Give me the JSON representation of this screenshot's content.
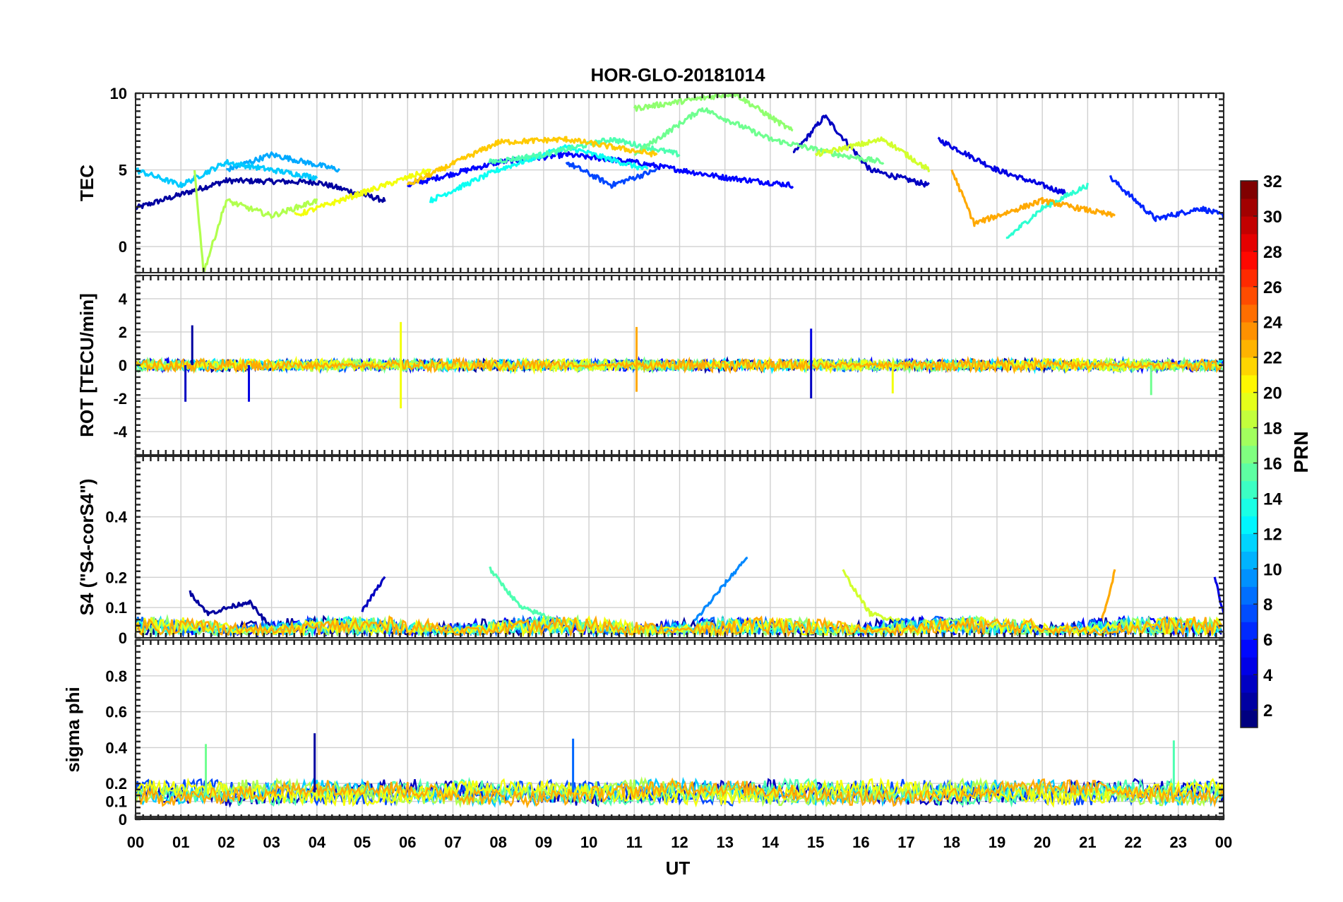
{
  "title": "HOR-GLO-20181014",
  "xlabel": "UT",
  "x_ticks": [
    "00",
    "01",
    "02",
    "03",
    "04",
    "05",
    "06",
    "07",
    "08",
    "09",
    "10",
    "11",
    "12",
    "13",
    "14",
    "15",
    "16",
    "17",
    "18",
    "19",
    "20",
    "21",
    "22",
    "23",
    "00"
  ],
  "colorbar": {
    "label": "PRN",
    "ticks": [
      "2",
      "4",
      "6",
      "8",
      "10",
      "12",
      "14",
      "16",
      "18",
      "20",
      "22",
      "24",
      "26",
      "28",
      "30",
      "32"
    ],
    "range": [
      1,
      32
    ]
  },
  "chart_data": [
    {
      "type": "line",
      "ylabel": "TEC",
      "yticks": [
        "0",
        "5",
        "10"
      ],
      "ytick_values": [
        0,
        5,
        10
      ],
      "ylim": [
        -1.7,
        10
      ],
      "series": [
        {
          "prn": 2,
          "x": [
            0,
            2,
            4,
            5.5
          ],
          "values": [
            2.5,
            4.3,
            4.2,
            3.0
          ]
        },
        {
          "prn": 3,
          "x": [
            14.5,
            15.2,
            16.2,
            17.5
          ],
          "values": [
            6.0,
            8.5,
            5.0,
            4.0
          ]
        },
        {
          "prn": 4,
          "x": [
            17.7,
            19,
            20.5
          ],
          "values": [
            7.0,
            5.0,
            3.5
          ]
        },
        {
          "prn": 5,
          "x": [
            6,
            8,
            9.5,
            11,
            13,
            14.5
          ],
          "values": [
            4.0,
            5.5,
            6.0,
            5.5,
            4.5,
            4.0
          ]
        },
        {
          "prn": 6,
          "x": [
            21.5,
            22.5,
            23.5,
            24
          ],
          "values": [
            4.5,
            1.8,
            2.5,
            2.0
          ]
        },
        {
          "prn": 7,
          "x": [
            9.5,
            10.5,
            11.5
          ],
          "values": [
            5.5,
            4.0,
            5.0
          ]
        },
        {
          "prn": 10,
          "x": [
            2,
            3,
            4.5
          ],
          "values": [
            5.0,
            6.0,
            5.0
          ]
        },
        {
          "prn": 11,
          "x": [
            0,
            1,
            2,
            3,
            4
          ],
          "values": [
            5.0,
            4.0,
            5.5,
            5.0,
            4.5
          ]
        },
        {
          "prn": 13,
          "x": [
            6.5,
            8,
            9.5,
            11.3
          ],
          "values": [
            3.0,
            5.0,
            6.5,
            5.0
          ]
        },
        {
          "prn": 14,
          "x": [
            19.2,
            20,
            21
          ],
          "values": [
            0.5,
            2.5,
            4.0
          ]
        },
        {
          "prn": 15,
          "x": [
            7.8,
            9,
            10.5,
            12
          ],
          "values": [
            5.5,
            6.0,
            7.0,
            6.0
          ]
        },
        {
          "prn": 16,
          "x": [
            11,
            12.5,
            14,
            15.5,
            16.5
          ],
          "values": [
            6.0,
            9.0,
            7.0,
            6.0,
            5.5
          ]
        },
        {
          "prn": 17,
          "x": [
            11,
            13.2,
            14.5
          ],
          "values": [
            9.0,
            10.0,
            7.5
          ]
        },
        {
          "prn": 18,
          "x": [
            1.3,
            1.5,
            2,
            3,
            4
          ],
          "values": [
            5.0,
            -1.7,
            3.0,
            2.0,
            3.0
          ]
        },
        {
          "prn": 19,
          "x": [
            15,
            16.5,
            17.5
          ],
          "values": [
            6.0,
            7.0,
            5.0
          ]
        },
        {
          "prn": 20,
          "x": [
            3.5,
            5,
            6.5
          ],
          "values": [
            2.0,
            3.5,
            5.0
          ]
        },
        {
          "prn": 22,
          "x": [
            6,
            8,
            9.5,
            11.5
          ],
          "values": [
            4.0,
            6.8,
            7.0,
            6.0
          ]
        },
        {
          "prn": 23,
          "x": [
            18,
            18.5,
            20,
            21.6
          ],
          "values": [
            5.0,
            1.5,
            3.0,
            2.0
          ]
        }
      ]
    },
    {
      "type": "line",
      "ylabel": "ROT [TECU/min]",
      "yticks": [
        "-4",
        "-2",
        "0",
        "2",
        "4"
      ],
      "ytick_values": [
        -4,
        -2,
        0,
        2,
        4
      ],
      "ylim": [
        -5.4,
        5.4
      ],
      "noise_series": true,
      "spikes": [
        {
          "x": 1.25,
          "value": 2.4,
          "prn": 2
        },
        {
          "x": 1.1,
          "value": -2.2,
          "prn": 3
        },
        {
          "x": 2.5,
          "value": -2.2,
          "prn": 4
        },
        {
          "x": 5.85,
          "value": 2.6,
          "prn": 20
        },
        {
          "x": 5.85,
          "value": -2.6,
          "prn": 20
        },
        {
          "x": 11.05,
          "value": 2.3,
          "prn": 23
        },
        {
          "x": 11.05,
          "value": -1.6,
          "prn": 23
        },
        {
          "x": 14.9,
          "value": 2.2,
          "prn": 4
        },
        {
          "x": 14.9,
          "value": -2.0,
          "prn": 3
        },
        {
          "x": 16.7,
          "value": -1.7,
          "prn": 20
        },
        {
          "x": 22.4,
          "value": -1.8,
          "prn": 16
        }
      ]
    },
    {
      "type": "line",
      "ylabel": "S4 (\"S4-corS4\")",
      "yticks": [
        "0",
        "0.1",
        "0.2",
        "0.4"
      ],
      "ytick_values": [
        0,
        0.1,
        0.2,
        0.4
      ],
      "ylim": [
        0,
        0.6
      ],
      "series": [
        {
          "prn": 2,
          "x": [
            1.2,
            1.6,
            2.5,
            3
          ],
          "values": [
            0.15,
            0.08,
            0.12,
            0.03
          ]
        },
        {
          "prn": 3,
          "x": [
            5,
            5.5
          ],
          "values": [
            0.09,
            0.2
          ]
        },
        {
          "prn": 9,
          "x": [
            12.3,
            13.5
          ],
          "values": [
            0.05,
            0.27
          ]
        },
        {
          "prn": 15,
          "x": [
            7.8,
            8.5,
            9.5
          ],
          "values": [
            0.23,
            0.1,
            0.05
          ]
        },
        {
          "prn": 19,
          "x": [
            15.6,
            16.2,
            17
          ],
          "values": [
            0.22,
            0.08,
            0.05
          ]
        },
        {
          "prn": 23,
          "x": [
            21.3,
            21.6
          ],
          "values": [
            0.05,
            0.22
          ]
        },
        {
          "prn": 4,
          "x": [
            23.8,
            24
          ],
          "values": [
            0.2,
            0.08
          ]
        }
      ]
    },
    {
      "type": "line",
      "ylabel": "sigma phi",
      "yticks": [
        "0",
        "0.1",
        "0.2",
        "0.4",
        "0.6",
        "0.8"
      ],
      "ytick_values": [
        0,
        0.1,
        0.2,
        0.4,
        0.6,
        0.8
      ],
      "ylim": [
        0,
        1
      ],
      "baseline": 0.15,
      "spikes": [
        {
          "x": 1.55,
          "value": 0.42,
          "prn": 16
        },
        {
          "x": 3.95,
          "value": 0.48,
          "prn": 2
        },
        {
          "x": 9.65,
          "value": 0.45,
          "prn": 8
        },
        {
          "x": 22.9,
          "value": 0.44,
          "prn": 15
        }
      ]
    }
  ]
}
